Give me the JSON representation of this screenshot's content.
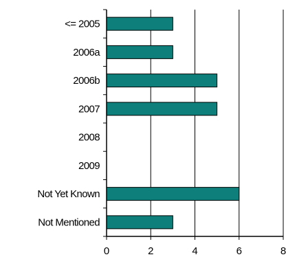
{
  "chart_data": {
    "type": "bar",
    "orientation": "horizontal",
    "categories": [
      "<= 2005",
      "2006a",
      "2006b",
      "2007",
      "2008",
      "2009",
      "Not Yet Known",
      "Not Mentioned"
    ],
    "values": [
      3,
      3,
      5,
      5,
      0,
      0,
      6,
      3
    ],
    "xlim": [
      0,
      8
    ],
    "xticks": [
      "0",
      "2",
      "4",
      "6",
      "8"
    ],
    "grid": true,
    "bar_color": "#0E7F7A",
    "bar_edge_color": "#000000",
    "title": "",
    "xlabel": "",
    "ylabel": ""
  }
}
